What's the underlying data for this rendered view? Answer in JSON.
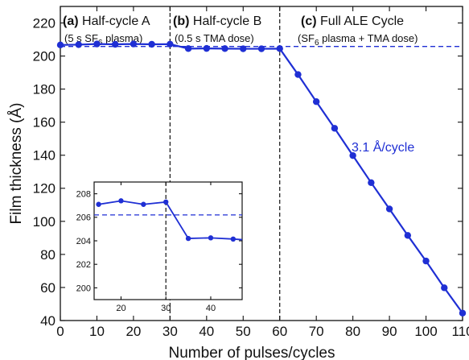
{
  "chart_data": [
    {
      "type": "line",
      "xlabel": "Number of pulses/cycles",
      "ylabel": "Film thickness (Å)",
      "xlim": [
        0,
        110
      ],
      "ylim": [
        40,
        230
      ],
      "xticks": [
        "0",
        "10",
        "20",
        "30",
        "40",
        "50",
        "60",
        "70",
        "80",
        "90",
        "100",
        "110"
      ],
      "yticks": [
        "40",
        "60",
        "80",
        "100",
        "120",
        "140",
        "160",
        "180",
        "200",
        "220"
      ],
      "series": [
        {
          "x": [
            0,
            5,
            10,
            15,
            20,
            25,
            30,
            35,
            40,
            45,
            50,
            55,
            60,
            65,
            70,
            75,
            80,
            85,
            90,
            95,
            100,
            105,
            110
          ],
          "y": [
            206.7,
            206.9,
            207.3,
            207.1,
            207.3,
            207.1,
            207.2,
            204.5,
            204.6,
            204.5,
            204.4,
            204.4,
            204.5,
            188.8,
            172.4,
            156.3,
            139.8,
            123.4,
            107.5,
            91.5,
            76.0,
            59.8,
            44.5
          ],
          "color": "#1f2fd4"
        }
      ],
      "reference_line": {
        "y": 205.8,
        "style": "dashed",
        "color": "#1f2fd4"
      },
      "dividers_x": [
        30,
        60
      ],
      "grid": false
    },
    {
      "type": "line",
      "inset": true,
      "xlim": [
        14,
        47
      ],
      "ylim": [
        199,
        209
      ],
      "xticks": [
        "20",
        "30",
        "40"
      ],
      "yticks": [
        "200",
        "202",
        "204",
        "206",
        "208"
      ],
      "series": [
        {
          "x": [
            15,
            20,
            25,
            30,
            35,
            40,
            45,
            47
          ],
          "y": [
            207.1,
            207.4,
            207.1,
            207.3,
            204.2,
            204.25,
            204.15,
            204.1
          ],
          "color": "#1f2fd4"
        }
      ],
      "reference_line": {
        "y": 206.2,
        "style": "dashed",
        "color": "#1f2fd4"
      },
      "dividers_x": [
        30
      ],
      "grid": false
    }
  ],
  "panels": {
    "a": {
      "tag": "(a)",
      "title": "Half-cycle A",
      "sub_before": "(5 s SF",
      "sub_index": "6",
      "sub_after": " plasma)"
    },
    "b": {
      "tag": "(b)",
      "title": "Half-cycle B",
      "sub": "(0.5 s TMA dose)"
    },
    "c": {
      "tag": "(c)",
      "title": "Full ALE Cycle",
      "sub_before": "(SF",
      "sub_index": "6",
      "sub_after": " plasma + TMA dose)"
    }
  },
  "rate_label": "3.1 Å/cycle",
  "colors": {
    "series": "#1f2fd4",
    "axis": "#111111",
    "divider": "#111111"
  }
}
